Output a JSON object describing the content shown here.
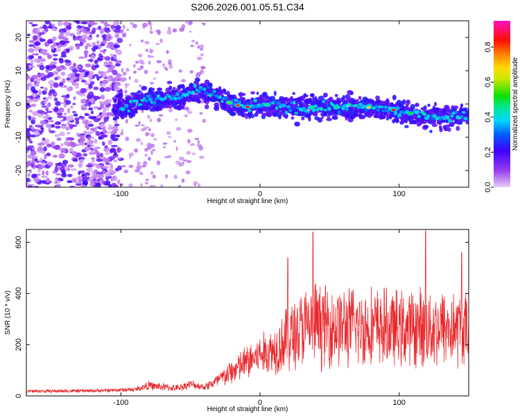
{
  "title": "S206.2026.001.05.51.C34",
  "chart_data": [
    {
      "type": "heatmap",
      "name": "spectrogram",
      "title": "S206.2026.001.05.51.C34",
      "xlabel": "Height of straight line (km)",
      "ylabel": "Frequency (Hz)",
      "xlim": [
        -168,
        150
      ],
      "ylim": [
        -25,
        25
      ],
      "xticks": [
        -100,
        0,
        100
      ],
      "xtick_labels": [
        "-100",
        "0",
        "100"
      ],
      "yticks": [
        -20,
        -10,
        0,
        10,
        20
      ],
      "ytick_labels": [
        "-20",
        "-10",
        "0",
        "10",
        "20"
      ],
      "colorbar": {
        "label": "Normalized spectral amplitude",
        "range": [
          0.0,
          0.95
        ],
        "ticks": [
          0.0,
          0.2,
          0.4,
          0.6,
          0.8
        ],
        "tick_labels": [
          "0.0",
          "0.2",
          "0.4",
          "0.6",
          "0.8"
        ],
        "colormap": "rainbow (purple-blue-cyan-green-yellow-orange-red-magenta)"
      },
      "ridge": {
        "description": "dominant frequency band",
        "x": [
          -100,
          -80,
          -60,
          -45,
          -35,
          -20,
          -10,
          0,
          20,
          50,
          80,
          100,
          110,
          130,
          150
        ],
        "y": [
          -1,
          1,
          2,
          4,
          3,
          0,
          -1,
          0,
          -1,
          -1,
          -1,
          -2,
          -3,
          -4,
          -3
        ]
      },
      "noise_region": {
        "x_range": [
          -168,
          -100
        ],
        "y_range": [
          -25,
          25
        ]
      },
      "grid": false
    },
    {
      "type": "line",
      "name": "snr",
      "xlabel": "Height of straight line (km)",
      "ylabel": "SNR (10 * v/v)",
      "xlim": [
        -168,
        150
      ],
      "ylim": [
        0,
        650
      ],
      "xticks": [
        -100,
        0,
        100
      ],
      "xtick_labels": [
        "-100",
        "0",
        "100"
      ],
      "yticks": [
        0,
        200,
        400,
        600
      ],
      "ytick_labels": [
        "0",
        "200",
        "400",
        "600"
      ],
      "color": "#e8262a",
      "envelope": {
        "x": [
          -168,
          -120,
          -90,
          -80,
          -60,
          -50,
          -40,
          -30,
          -20,
          -10,
          0,
          10,
          20,
          30,
          40,
          60,
          80,
          100,
          120,
          150
        ],
        "mean": [
          18,
          20,
          25,
          40,
          30,
          45,
          35,
          60,
          95,
          130,
          160,
          180,
          230,
          260,
          280,
          270,
          270,
          260,
          270,
          260
        ],
        "amplitude": [
          8,
          8,
          10,
          20,
          15,
          20,
          15,
          35,
          60,
          80,
          90,
          110,
          160,
          180,
          190,
          180,
          180,
          170,
          180,
          170
        ]
      },
      "peaks": [
        {
          "x": 38,
          "y": 640
        },
        {
          "x": 119,
          "y": 645
        },
        {
          "x": 20,
          "y": 540
        },
        {
          "x": 145,
          "y": 560
        }
      ],
      "grid": false
    }
  ]
}
